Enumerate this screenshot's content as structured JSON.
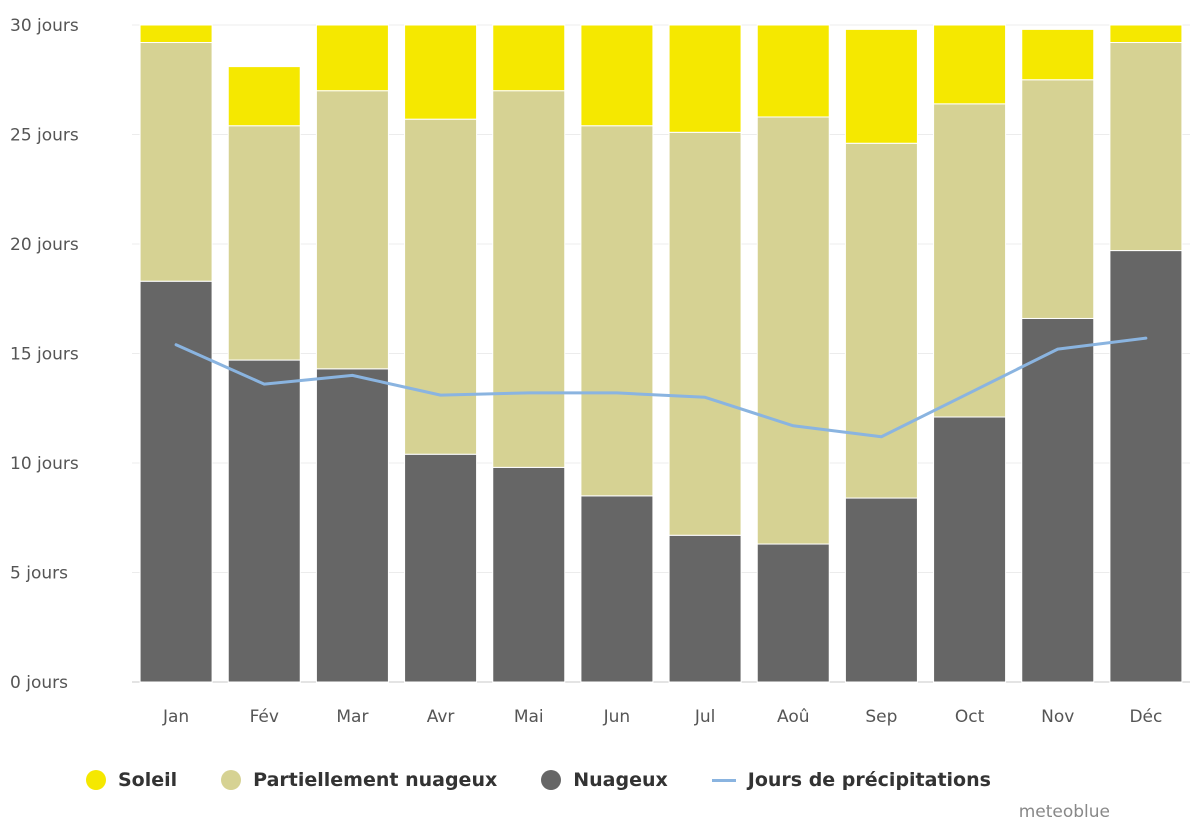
{
  "chart_data": {
    "type": "bar",
    "stacked": true,
    "categories": [
      "Jan",
      "Fév",
      "Mar",
      "Avr",
      "Mai",
      "Jun",
      "Jul",
      "Aoû",
      "Sep",
      "Oct",
      "Nov",
      "Déc"
    ],
    "series": [
      {
        "name": "Nuageux",
        "color": "#666666",
        "values": [
          18.3,
          14.7,
          14.3,
          10.4,
          9.8,
          8.5,
          6.7,
          6.3,
          8.4,
          12.1,
          16.6,
          19.7
        ]
      },
      {
        "name": "Partiellement nuageux",
        "color": "#d6d293",
        "values": [
          10.9,
          10.7,
          12.7,
          15.3,
          17.2,
          16.9,
          18.4,
          19.5,
          16.2,
          14.3,
          10.9,
          9.5
        ]
      },
      {
        "name": "Soleil",
        "color": "#f5e800",
        "values": [
          0.8,
          2.7,
          3.0,
          4.3,
          3.0,
          4.6,
          4.9,
          4.2,
          5.2,
          3.6,
          2.3,
          0.8
        ]
      }
    ],
    "line": {
      "name": "Jours de précipitations",
      "color": "#8ab4e0",
      "values": [
        15.4,
        13.6,
        14.0,
        13.1,
        13.2,
        13.2,
        13.0,
        11.7,
        11.2,
        13.2,
        15.2,
        15.7
      ]
    },
    "y_ticks": [
      {
        "value": 0,
        "label": "0 jours"
      },
      {
        "value": 5,
        "label": "5 jours"
      },
      {
        "value": 10,
        "label": "10 jours"
      },
      {
        "value": 15,
        "label": "15 jours"
      },
      {
        "value": 20,
        "label": "20 jours"
      },
      {
        "value": 25,
        "label": "25 jours"
      },
      {
        "value": 30,
        "label": "30 jours"
      }
    ],
    "ylim": [
      0,
      30
    ],
    "grid": true,
    "legend_position": "bottom"
  },
  "legend": [
    {
      "label": "Soleil",
      "color": "#f5e800",
      "kind": "dot"
    },
    {
      "label": "Partiellement nuageux",
      "color": "#d6d293",
      "kind": "dot"
    },
    {
      "label": "Nuageux",
      "color": "#666666",
      "kind": "dot"
    },
    {
      "label": "Jours de précipitations",
      "color": "#8ab4e0",
      "kind": "line"
    }
  ],
  "credit": "meteoblue"
}
